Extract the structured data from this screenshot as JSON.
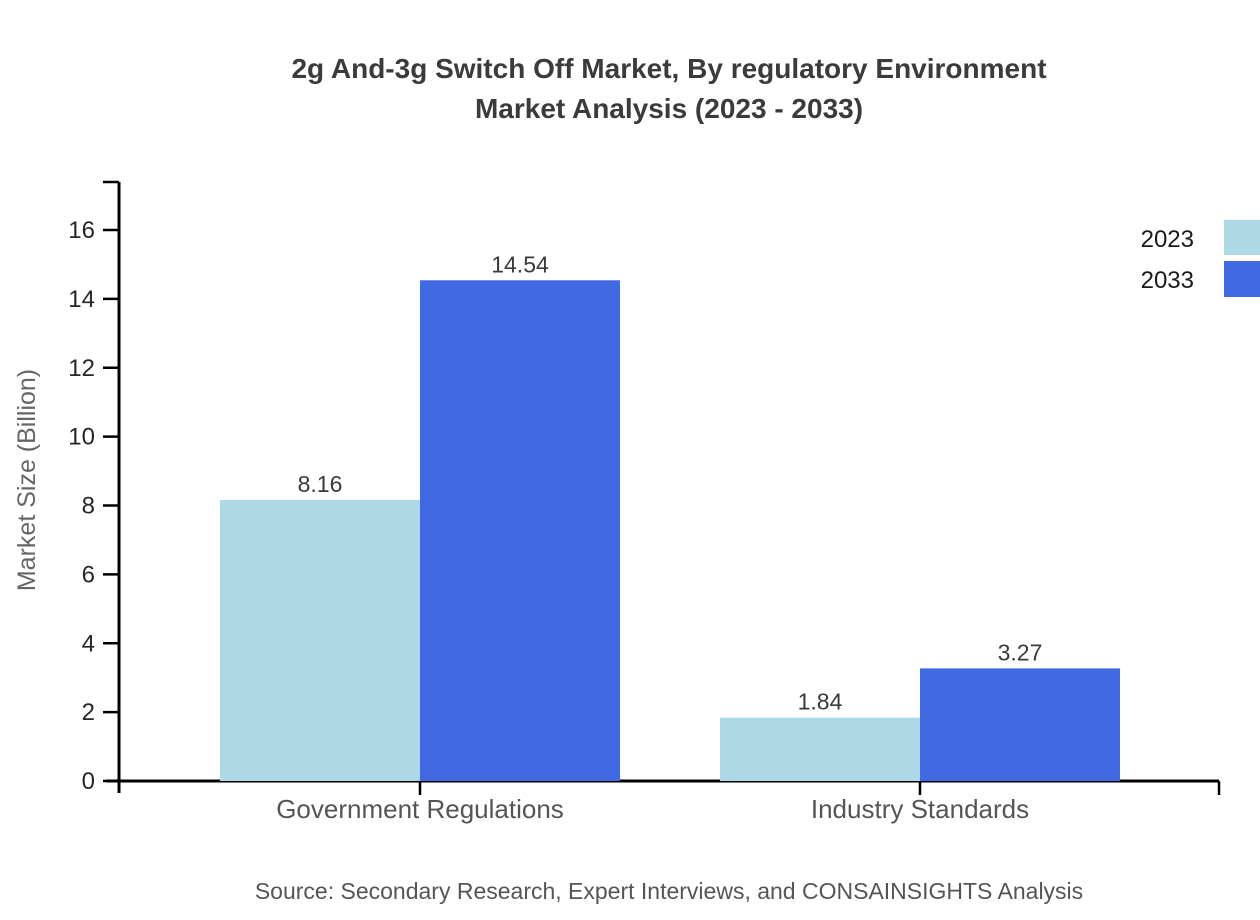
{
  "title": {
    "line1": "2g And-3g Switch Off Market, By regulatory Environment",
    "line2": "Market Analysis (2023 - 2033)"
  },
  "source_note": "Source: Secondary Research, Expert Interviews, and CONSAINSIGHTS Analysis",
  "chart_data": {
    "type": "bar",
    "title": "2g And-3g Switch Off Market, By regulatory Environment Market Analysis (2023 - 2033)",
    "categories": [
      "Government Regulations",
      "Industry Standards"
    ],
    "series": [
      {
        "name": "2023",
        "color": "#ADD8E6",
        "values": [
          8.16,
          1.84
        ]
      },
      {
        "name": "2033",
        "color": "#4169E1",
        "values": [
          14.54,
          3.27
        ]
      }
    ],
    "ylabel": "Market Size (Billion)",
    "xlabel": "",
    "ylim": [
      0,
      16
    ],
    "yticks": [
      0,
      2,
      4,
      6,
      8,
      10,
      12,
      14,
      16
    ],
    "grid": false,
    "legend_position": "top-right",
    "value_label_format": "0.00"
  }
}
